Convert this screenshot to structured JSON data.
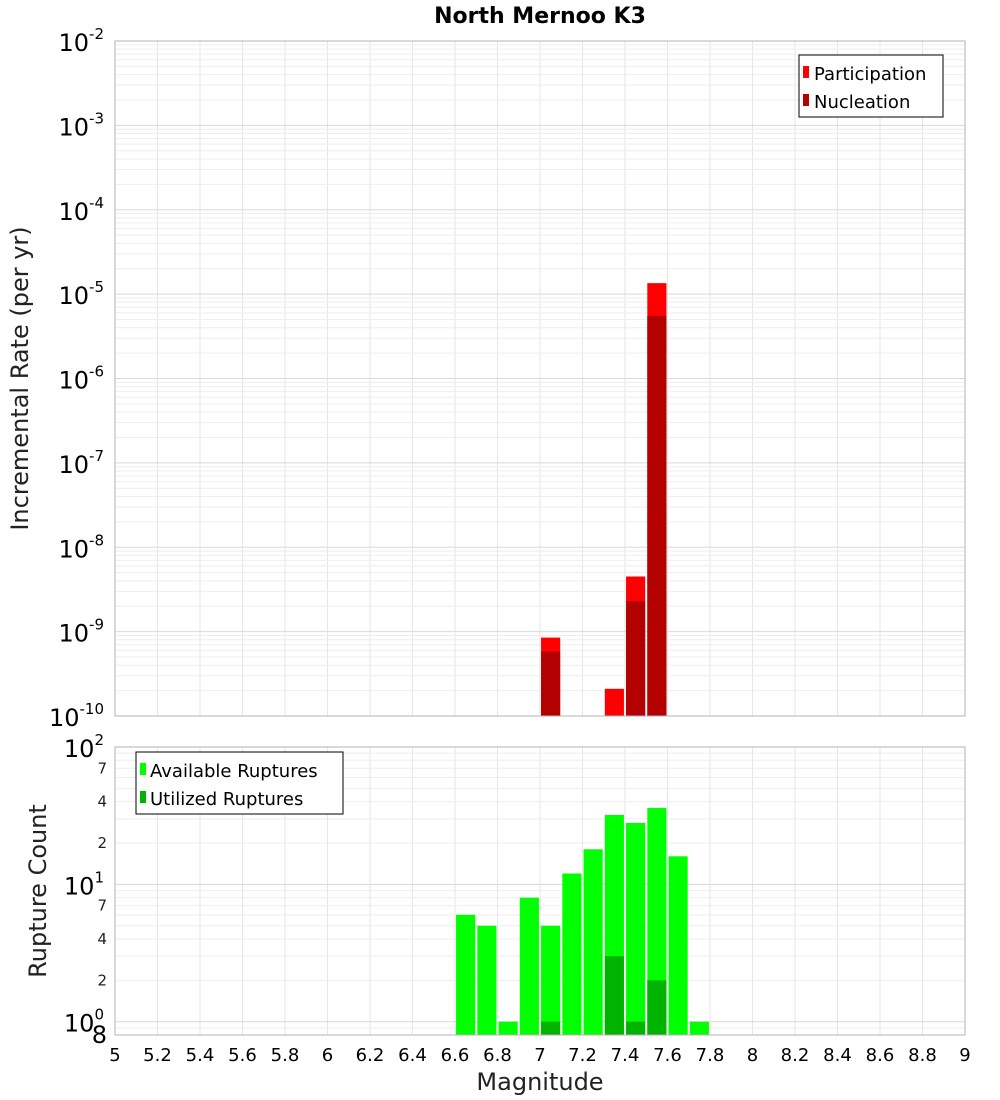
{
  "title": "North Mernoo K3",
  "xlabel": "Magnitude",
  "x_ticks": [
    "5",
    "5.2",
    "5.4",
    "5.6",
    "5.8",
    "6",
    "6.2",
    "6.4",
    "6.6",
    "6.8",
    "7",
    "7.2",
    "7.4",
    "7.6",
    "7.8",
    "8",
    "8.2",
    "8.4",
    "8.6",
    "8.8",
    "9"
  ],
  "colors": {
    "participation": "#ff0000",
    "nucleation": "#b30000",
    "available": "#00ff00",
    "utilized": "#00b300"
  },
  "chart_data": [
    {
      "type": "bar",
      "name": "rate-panel",
      "ylabel": "Incremental Rate (per yr)",
      "yscale": "log",
      "xlim": [
        5,
        9
      ],
      "ylim": [
        1e-10,
        0.01
      ],
      "bar_width": 0.09,
      "y_ticks": [
        {
          "base": "10",
          "exp": "-2"
        },
        {
          "base": "10",
          "exp": "-3"
        },
        {
          "base": "10",
          "exp": "-4"
        },
        {
          "base": "10",
          "exp": "-5"
        },
        {
          "base": "10",
          "exp": "-6"
        },
        {
          "base": "10",
          "exp": "-7"
        },
        {
          "base": "10",
          "exp": "-8"
        },
        {
          "base": "10",
          "exp": "-9"
        },
        {
          "base": "10",
          "exp": "-10"
        }
      ],
      "legend": {
        "position": "top-right",
        "entries": [
          "Participation",
          "Nucleation"
        ]
      },
      "series": [
        {
          "name": "Participation",
          "x": [
            7.05,
            7.35,
            7.45,
            7.55
          ],
          "values": [
            8.5e-10,
            2.1e-10,
            4.5e-09,
            1.35e-05
          ]
        },
        {
          "name": "Nucleation",
          "x": [
            7.05,
            7.45,
            7.55
          ],
          "values": [
            5.8e-10,
            2.3e-09,
            5.5e-06
          ]
        }
      ]
    },
    {
      "type": "bar",
      "name": "count-panel",
      "ylabel": "Rupture Count",
      "yscale": "log",
      "xlim": [
        5,
        9
      ],
      "ylim": [
        0.8,
        100
      ],
      "bar_width": 0.09,
      "y_ticks": [
        {
          "base": "10",
          "exp": "2"
        },
        {
          "base": "10",
          "exp": "1"
        },
        {
          "base": "10",
          "exp": "0"
        }
      ],
      "y_minor_labels": [
        {
          "value": 70,
          "label": "7"
        },
        {
          "value": 40,
          "label": "4"
        },
        {
          "value": 20,
          "label": "2"
        },
        {
          "value": 7,
          "label": "7"
        },
        {
          "value": 4,
          "label": "4"
        },
        {
          "value": 2,
          "label": "2"
        },
        {
          "value": 0.8,
          "label": "8"
        }
      ],
      "legend": {
        "position": "top-left",
        "entries": [
          "Available Ruptures",
          "Utilized Ruptures"
        ]
      },
      "series": [
        {
          "name": "Available Ruptures",
          "x": [
            6.65,
            6.75,
            6.85,
            6.95,
            7.05,
            7.15,
            7.25,
            7.35,
            7.45,
            7.55,
            7.65,
            7.75
          ],
          "values": [
            6,
            5,
            1,
            8,
            5,
            12,
            18,
            32,
            28,
            36,
            16,
            1
          ]
        },
        {
          "name": "Utilized Ruptures",
          "x": [
            7.05,
            7.35,
            7.45,
            7.55
          ],
          "values": [
            1,
            3,
            1,
            2
          ]
        }
      ]
    }
  ]
}
